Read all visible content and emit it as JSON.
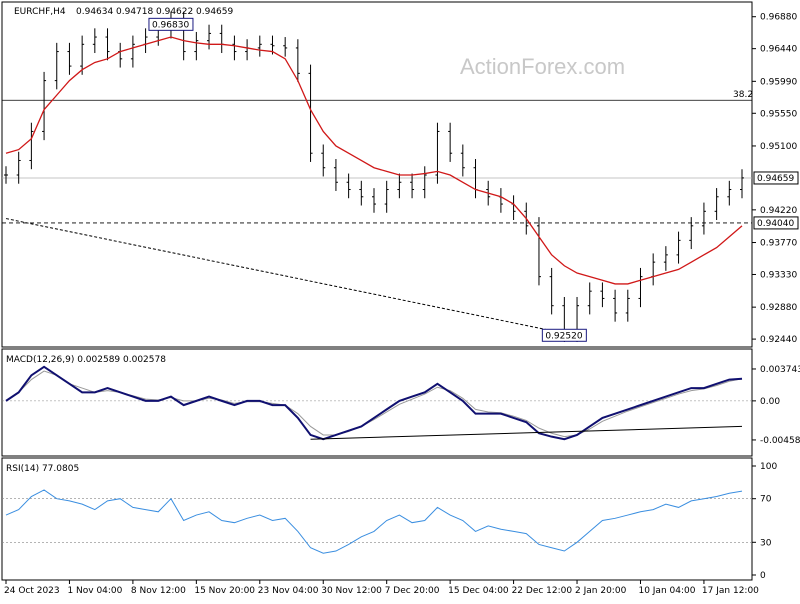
{
  "chart_data": {
    "type": "line",
    "title": "EURCHF,H4",
    "ohlc": {
      "open": "0.94634",
      "high": "0.94718",
      "low": "0.94622",
      "close": "0.94659"
    },
    "watermark": "ActionForex.com",
    "x_ticks": [
      "24 Oct 2023",
      "1 Nov 04:00",
      "8 Nov 12:00",
      "15 Nov 20:00",
      "23 Nov 04:00",
      "30 Nov 12:00",
      "7 Dec 20:00",
      "15 Dec 04:00",
      "22 Dec 12:00",
      "2 Jan 20:00",
      "10 Jan 04:00",
      "17 Jan 12:00"
    ],
    "price_axis": {
      "ticks": [
        "0.96880",
        "0.96440",
        "0.95990",
        "0.95550",
        "0.95100",
        "0.94220",
        "0.93770",
        "0.93330",
        "0.92880",
        "0.92440"
      ],
      "ylim": [
        0.924,
        0.97
      ],
      "current_price": "0.94659",
      "support_level": "0.94040",
      "fib_level_label": "38.2",
      "fib_level_value": 0.9573,
      "high_label": "0.96830",
      "low_label": "0.92520"
    },
    "price_series": {
      "name": "EURCHF",
      "close": [
        0.947,
        0.949,
        0.953,
        0.96,
        0.964,
        0.962,
        0.965,
        0.966,
        0.964,
        0.963,
        0.965,
        0.966,
        0.967,
        0.9683,
        0.964,
        0.9655,
        0.9665,
        0.965,
        0.964,
        0.9645,
        0.965,
        0.9648,
        0.9645,
        0.961,
        0.95,
        0.948,
        0.946,
        0.945,
        0.944,
        0.943,
        0.945,
        0.946,
        0.945,
        0.947,
        0.953,
        0.95,
        0.948,
        0.945,
        0.944,
        0.943,
        0.942,
        0.94,
        0.933,
        0.929,
        0.9252,
        0.929,
        0.931,
        0.93,
        0.928,
        0.93,
        0.933,
        0.935,
        0.936,
        0.938,
        0.94,
        0.942,
        0.944,
        0.945,
        0.9466
      ],
      "ma": [
        0.95,
        0.9505,
        0.952,
        0.956,
        0.958,
        0.96,
        0.9615,
        0.9625,
        0.963,
        0.964,
        0.9645,
        0.965,
        0.9655,
        0.966,
        0.9655,
        0.9652,
        0.965,
        0.965,
        0.9648,
        0.9645,
        0.9642,
        0.964,
        0.963,
        0.96,
        0.956,
        0.953,
        0.951,
        0.95,
        0.949,
        0.948,
        0.9475,
        0.947,
        0.947,
        0.9472,
        0.9475,
        0.947,
        0.946,
        0.945,
        0.9445,
        0.944,
        0.943,
        0.941,
        0.9385,
        0.936,
        0.9345,
        0.9335,
        0.933,
        0.9325,
        0.932,
        0.932,
        0.9325,
        0.933,
        0.9335,
        0.934,
        0.935,
        0.936,
        0.937,
        0.9385,
        0.94
      ],
      "trendline": [
        [
          0,
          0.941
        ],
        [
          44,
          0.9252
        ]
      ]
    },
    "macd": {
      "label": "MACD(12,26,9) 0.002589 0.002578",
      "ticks": [
        "0.003743",
        "0.00",
        "-0.004585"
      ],
      "ylim": [
        -0.006,
        0.0055
      ],
      "main": [
        0.0,
        0.001,
        0.003,
        0.004,
        0.003,
        0.002,
        0.001,
        0.001,
        0.0015,
        0.001,
        0.0005,
        0.0,
        0.0,
        0.0005,
        -0.0005,
        0.0,
        0.0005,
        0.0,
        -0.0005,
        0.0,
        0.0,
        -0.0005,
        -0.0005,
        -0.002,
        -0.004,
        -0.0045,
        -0.004,
        -0.0035,
        -0.003,
        -0.002,
        -0.001,
        0.0,
        0.0005,
        0.001,
        0.002,
        0.001,
        0.0,
        -0.0015,
        -0.0015,
        -0.0015,
        -0.002,
        -0.0025,
        -0.0038,
        -0.0042,
        -0.0045,
        -0.004,
        -0.003,
        -0.002,
        -0.0015,
        -0.001,
        -0.0005,
        0.0,
        0.0005,
        0.001,
        0.0015,
        0.0015,
        0.002,
        0.0025,
        0.0026
      ],
      "signal": [
        0.0,
        0.001,
        0.0025,
        0.0035,
        0.003,
        0.002,
        0.0015,
        0.001,
        0.0012,
        0.001,
        0.0006,
        0.0002,
        0.0001,
        0.0004,
        0.0,
        0.0,
        0.0003,
        0.0001,
        -0.0003,
        -0.0001,
        -0.0001,
        -0.0003,
        -0.0005,
        -0.0015,
        -0.003,
        -0.004,
        -0.004,
        -0.0036,
        -0.003,
        -0.0022,
        -0.0013,
        -0.0004,
        0.0002,
        0.0008,
        0.0016,
        0.0012,
        0.0003,
        -0.001,
        -0.0013,
        -0.0014,
        -0.0018,
        -0.0023,
        -0.0032,
        -0.0038,
        -0.0042,
        -0.004,
        -0.0033,
        -0.0024,
        -0.0018,
        -0.0012,
        -0.0007,
        -0.0002,
        0.0003,
        0.0008,
        0.0012,
        0.0014,
        0.0018,
        0.0023,
        0.0026
      ],
      "trendline": [
        [
          24,
          -0.0045
        ],
        [
          58,
          -0.003
        ]
      ]
    },
    "rsi": {
      "label": "RSI(14) 77.0805",
      "ticks": [
        "100",
        "70",
        "30",
        "0"
      ],
      "ylim": [
        0,
        100
      ],
      "levels": [
        70,
        30
      ],
      "values": [
        55,
        60,
        72,
        78,
        70,
        68,
        65,
        60,
        68,
        70,
        62,
        60,
        58,
        70,
        50,
        55,
        58,
        50,
        48,
        52,
        55,
        50,
        52,
        40,
        25,
        20,
        22,
        28,
        35,
        40,
        50,
        55,
        48,
        50,
        62,
        55,
        50,
        40,
        45,
        42,
        40,
        38,
        28,
        25,
        22,
        30,
        40,
        50,
        52,
        55,
        58,
        60,
        65,
        62,
        68,
        70,
        72,
        75,
        77
      ]
    }
  }
}
